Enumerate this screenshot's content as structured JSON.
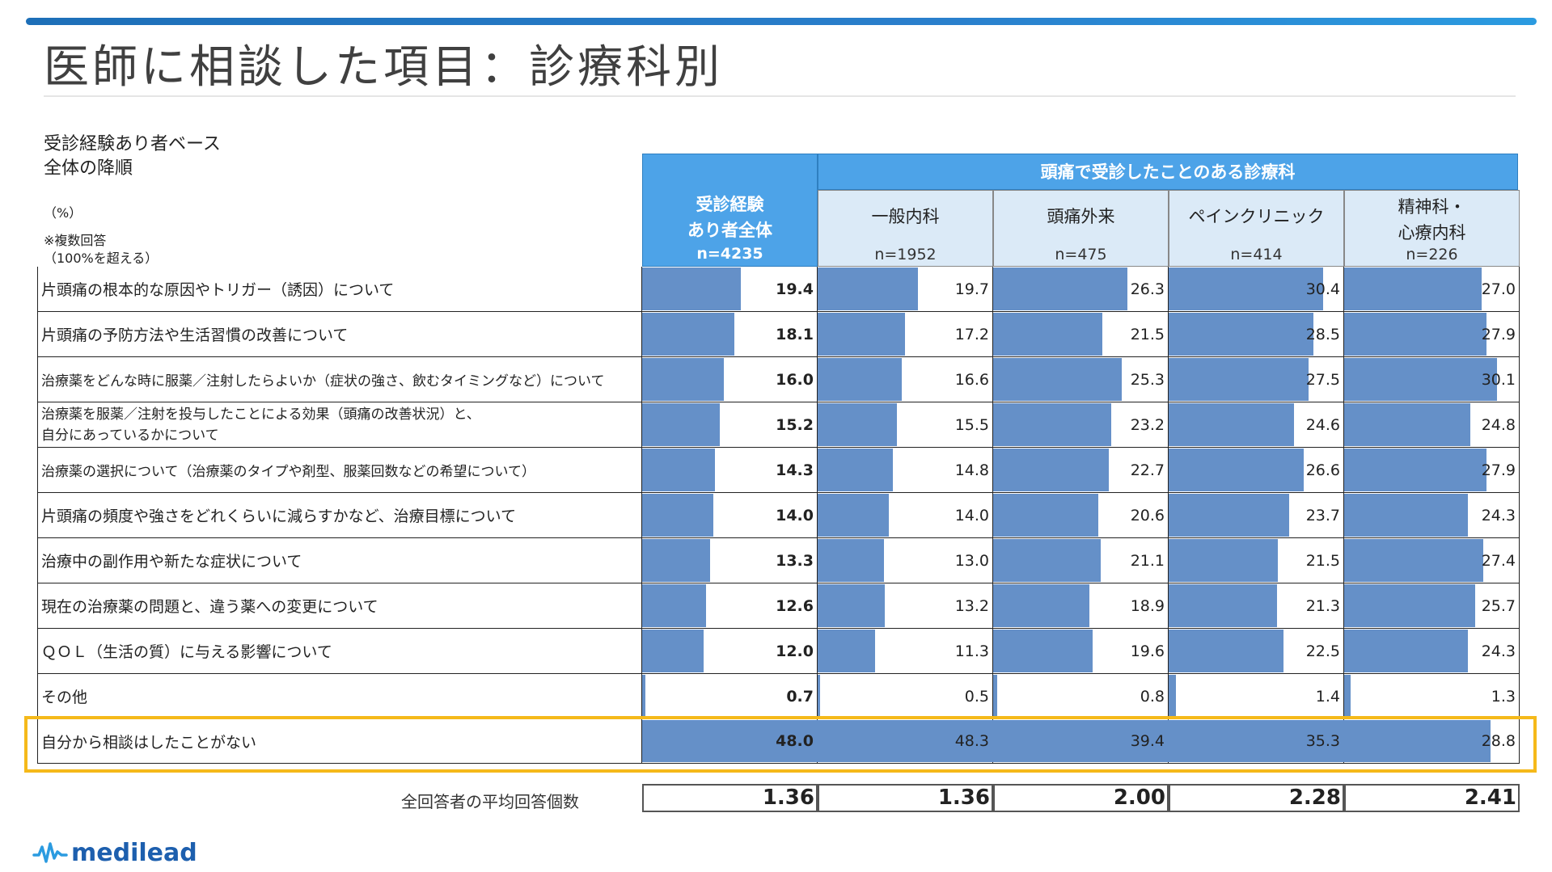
{
  "title": "医師に相談した項目：診療科別",
  "notes": {
    "base": "受診経験あり者ベース",
    "order": "全体の降順",
    "percent": "（%）",
    "multi1": "※複数回答",
    "multi2": "（100%を超える）"
  },
  "header": {
    "group": "頭痛で受診したことのある診療科",
    "overall_l1": "受診経験",
    "overall_l2": "あり者全体",
    "overall_n": "n=4235",
    "cols": [
      {
        "l1": "一般内科",
        "l2": "",
        "n": "n=1952"
      },
      {
        "l1": "頭痛外来",
        "l2": "",
        "n": "n=475"
      },
      {
        "l1": "ペインクリニック",
        "l2": "",
        "n": "n=414"
      },
      {
        "l1": "精神科・",
        "l2": "心療内科",
        "n": "n=226"
      }
    ]
  },
  "chart_data": {
    "type": "table",
    "series_names": [
      "受診経験あり者全体",
      "一般内科",
      "頭痛外来",
      "ペインクリニック",
      "精神科・心療内科"
    ],
    "rows": [
      {
        "label": "片頭痛の根本的な原因やトリガー（誘因）について",
        "values": [
          "19.4",
          "19.7",
          "26.3",
          "30.4",
          "27.0"
        ]
      },
      {
        "label": "片頭痛の予防方法や生活習慣の改善について",
        "values": [
          "18.1",
          "17.2",
          "21.5",
          "28.5",
          "27.9"
        ]
      },
      {
        "label": "治療薬をどんな時に服薬／注射したらよいか（症状の強さ、飲むタイミングなど）について",
        "values": [
          "16.0",
          "16.6",
          "25.3",
          "27.5",
          "30.1"
        ]
      },
      {
        "label": "治療薬を服薬／注射を投与したことによる効果（頭痛の改善状況）と、",
        "label2": "自分にあっているかについて",
        "values": [
          "15.2",
          "15.5",
          "23.2",
          "24.6",
          "24.8"
        ]
      },
      {
        "label": "治療薬の選択について（治療薬のタイプや剤型、服薬回数などの希望について）",
        "values": [
          "14.3",
          "14.8",
          "22.7",
          "26.6",
          "27.9"
        ]
      },
      {
        "label": "片頭痛の頻度や強さをどれくらいに減らすかなど、治療目標について",
        "values": [
          "14.0",
          "14.0",
          "20.6",
          "23.7",
          "24.3"
        ]
      },
      {
        "label": "治療中の副作用や新たな症状について",
        "values": [
          "13.3",
          "13.0",
          "21.1",
          "21.5",
          "27.4"
        ]
      },
      {
        "label": "現在の治療薬の問題と、違う薬への変更について",
        "values": [
          "12.6",
          "13.2",
          "18.9",
          "21.3",
          "25.7"
        ]
      },
      {
        "label": "ＱＯＬ（生活の質）に与える影響について",
        "values": [
          "12.0",
          "11.3",
          "19.6",
          "22.5",
          "24.3"
        ]
      },
      {
        "label": "その他",
        "values": [
          "0.7",
          "0.5",
          "0.8",
          "1.4",
          "1.3"
        ]
      },
      {
        "label": "自分から相談はしたことがない",
        "values": [
          "48.0",
          "48.3",
          "39.4",
          "35.3",
          "28.8"
        ]
      }
    ],
    "scale_max": 100,
    "bar_color": "#6590c8",
    "highlight_color": "#f5b91a"
  },
  "average": {
    "label": "全回答者の平均回答個数",
    "values": [
      "1.36",
      "1.36",
      "2.00",
      "2.28",
      "2.41"
    ]
  },
  "logo": "medilead"
}
